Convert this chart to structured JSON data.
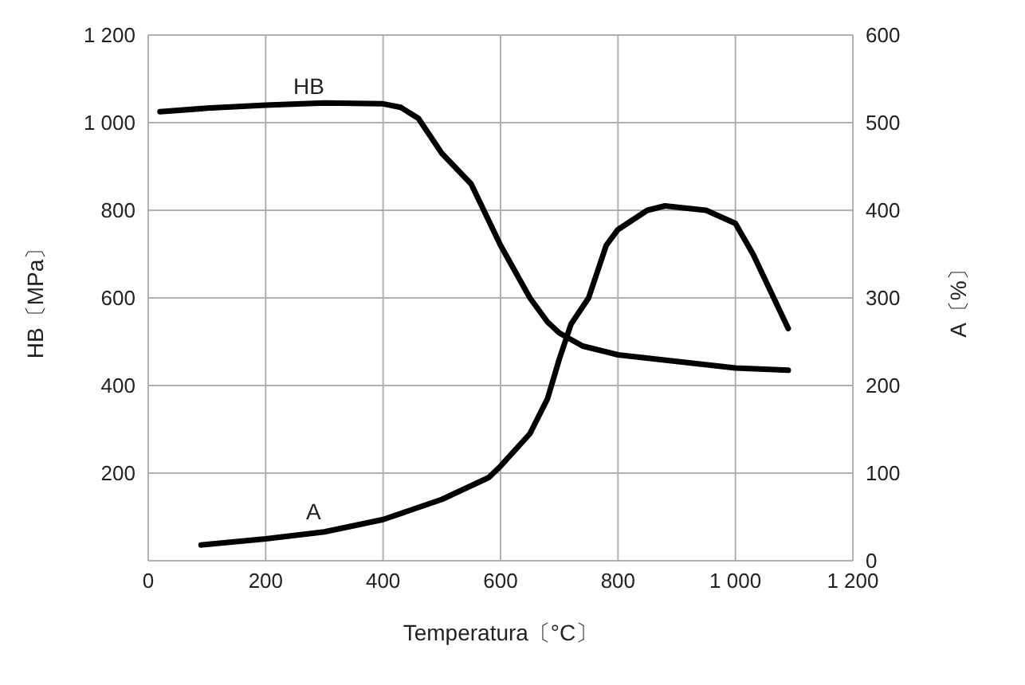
{
  "chart_data": {
    "type": "line",
    "xlabel": "Temperatura〔°C〕",
    "ylabel": "HB〔MPa〕",
    "y2label": "A〔%〕",
    "xlim": [
      0,
      1200
    ],
    "xticks": [
      0,
      200,
      400,
      600,
      800,
      {
        "value": 1000,
        "label": "1 000"
      },
      {
        "value": 1200,
        "label": "1 200"
      }
    ],
    "ylim": [
      0,
      1200
    ],
    "yticks": [
      {
        "value": 0,
        "label": null
      },
      200,
      400,
      600,
      800,
      {
        "value": 1000,
        "label": "1 000"
      },
      {
        "value": 1200,
        "label": "1 200"
      }
    ],
    "y2lim": [
      0,
      600
    ],
    "y2ticks": [
      0,
      100,
      200,
      300,
      400,
      500,
      600
    ],
    "grid": true,
    "marker": "none",
    "line_style": "solid",
    "series": [
      {
        "color": "#000000",
        "x": [
          20,
          100,
          200,
          300,
          400,
          430,
          460,
          480,
          500,
          550,
          600,
          650,
          680,
          700,
          740,
          800,
          900,
          1000,
          1090
        ],
        "values": [
          1025,
          1033,
          1040,
          1045,
          1043,
          1035,
          1010,
          970,
          930,
          860,
          720,
          600,
          545,
          520,
          490,
          470,
          455,
          440,
          435
        ]
      },
      {
        "color": "#000000",
        "axis": "y2",
        "x": [
          90,
          200,
          300,
          400,
          500,
          580,
          600,
          650,
          680,
          700,
          720,
          750,
          780,
          800,
          850,
          880,
          950,
          1000,
          1030,
          1090
        ],
        "values": [
          18,
          25,
          33,
          47,
          70,
          95,
          108,
          145,
          185,
          230,
          270,
          300,
          360,
          378,
          400,
          405,
          400,
          385,
          350,
          265
        ]
      }
    ],
    "annotations": [
      "HB",
      "A"
    ]
  }
}
